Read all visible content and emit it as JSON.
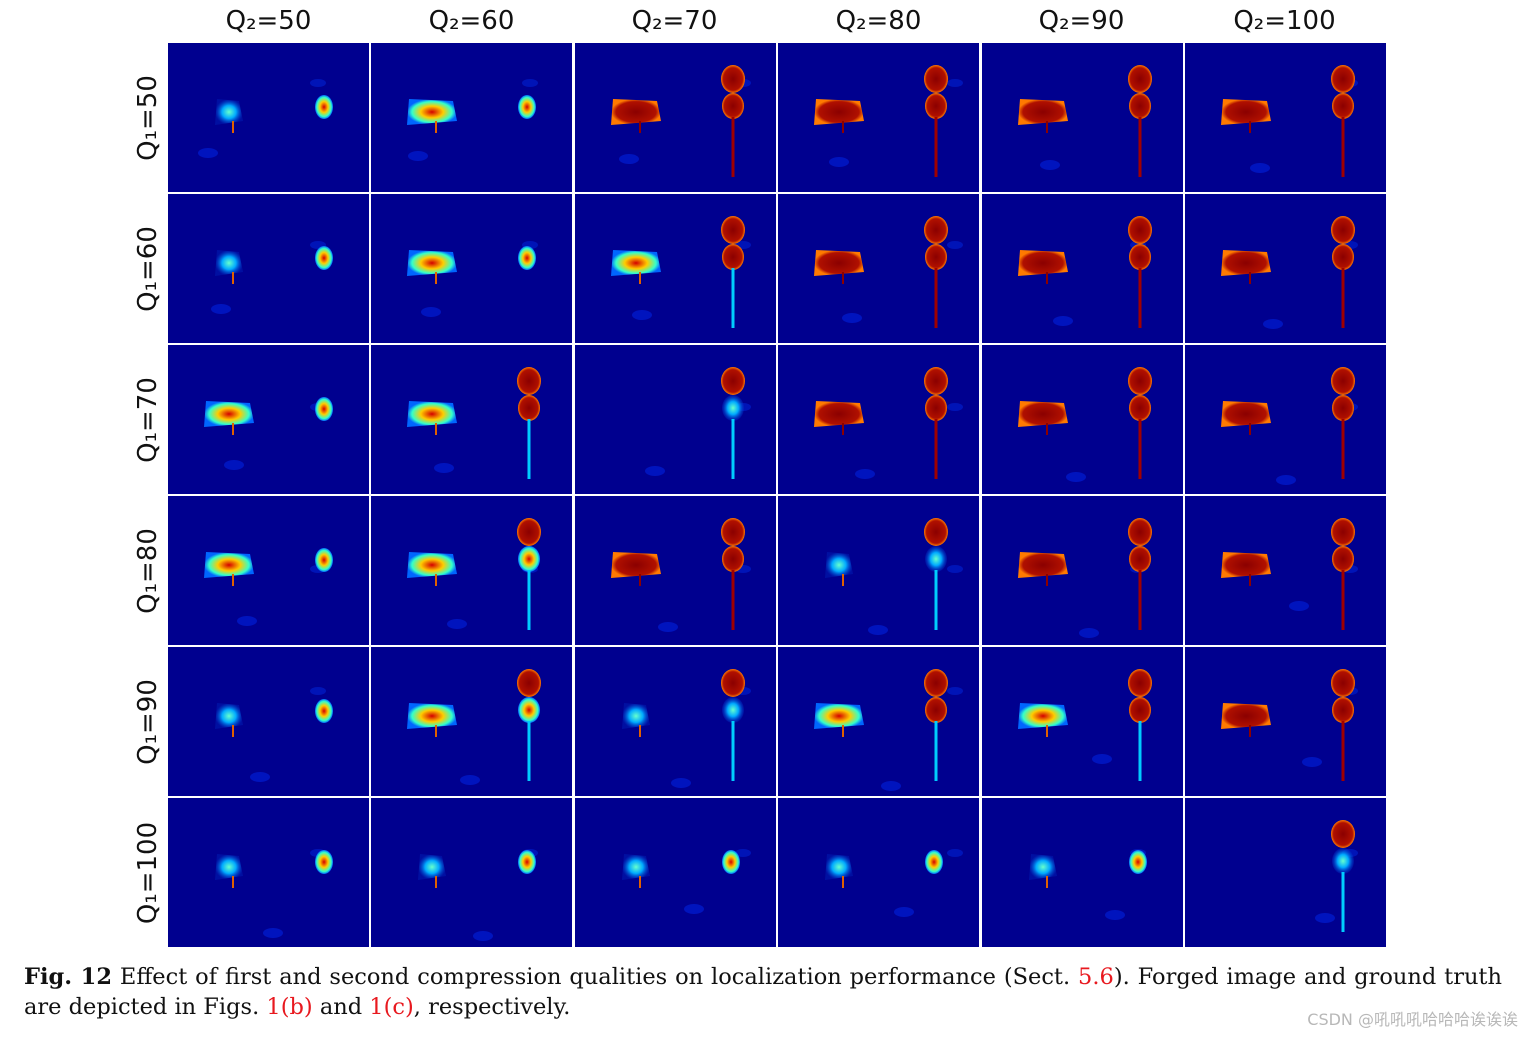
{
  "column_labels": [
    "Q₂=50",
    "Q₂=60",
    "Q₂=70",
    "Q₂=80",
    "Q₂=90",
    "Q₂=100"
  ],
  "row_labels": [
    "Q₁=50",
    "Q₁=60",
    "Q₁=70",
    "Q₁=80",
    "Q₁=90",
    "Q₁=100"
  ],
  "colors": {
    "background": "#00008f",
    "grid_line": "#ffffff",
    "hot": "#8b0000",
    "reference": "#e8191f"
  },
  "caption": {
    "fig_label": "Fig. 12",
    "text_1": "Effect of first and second compression qualities on localization performance (Sect.",
    "ref_1": "5.6",
    "text_2": "). Forged image and ground truth are depicted in Figs.",
    "ref_2": "1(b)",
    "text_3": "and",
    "ref_3": "1(c)",
    "text_4": ", respectively."
  },
  "watermark": "CSDN @吼吼吼哈哈哈诶诶诶"
}
